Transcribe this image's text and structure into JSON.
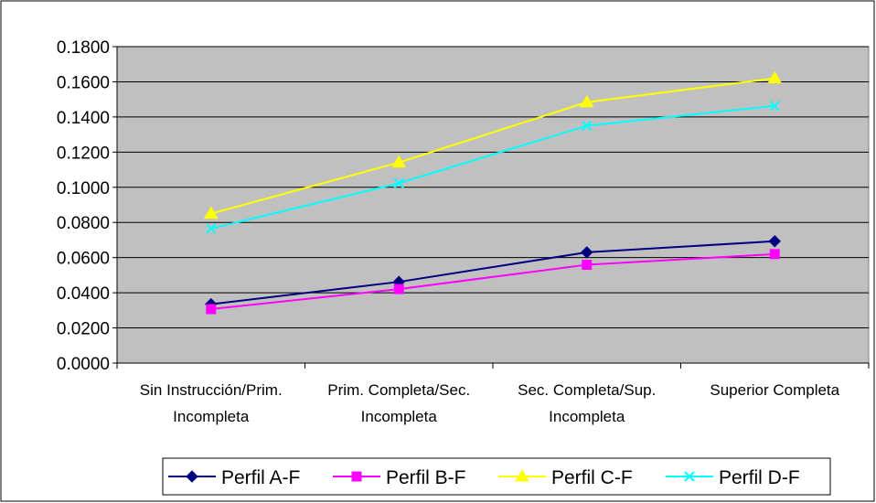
{
  "chart_data": {
    "type": "line",
    "categories": [
      [
        "Sin Instrucción/Prim.",
        "Incompleta"
      ],
      [
        "Prim. Completa/Sec.",
        "Incompleta"
      ],
      [
        "Sec. Completa/Sup.",
        "Incompleta"
      ],
      [
        "Superior Completa"
      ]
    ],
    "y_ticks": [
      "0.0000",
      "0.0200",
      "0.0400",
      "0.0600",
      "0.0800",
      "0.1000",
      "0.1200",
      "0.1400",
      "0.1600",
      "0.1800"
    ],
    "ylim": [
      0,
      0.18
    ],
    "grid": true,
    "legend_position": "bottom",
    "plot_background": "#c0c0c0",
    "series": [
      {
        "name": "Perfil A-F",
        "color": "#000080",
        "marker": "diamond",
        "values": [
          0.0335,
          0.0462,
          0.063,
          0.0693
        ]
      },
      {
        "name": "Perfil B-F",
        "color": "#ff00ff",
        "marker": "square",
        "values": [
          0.0307,
          0.0421,
          0.0559,
          0.062
        ]
      },
      {
        "name": "Perfil C-F",
        "color": "#ffff00",
        "marker": "triangle",
        "values": [
          0.085,
          0.1141,
          0.1484,
          0.162
        ]
      },
      {
        "name": "Perfil D-F",
        "color": "#00ffff",
        "marker": "x",
        "values": [
          0.0765,
          0.1023,
          0.135,
          0.1463
        ]
      }
    ]
  }
}
